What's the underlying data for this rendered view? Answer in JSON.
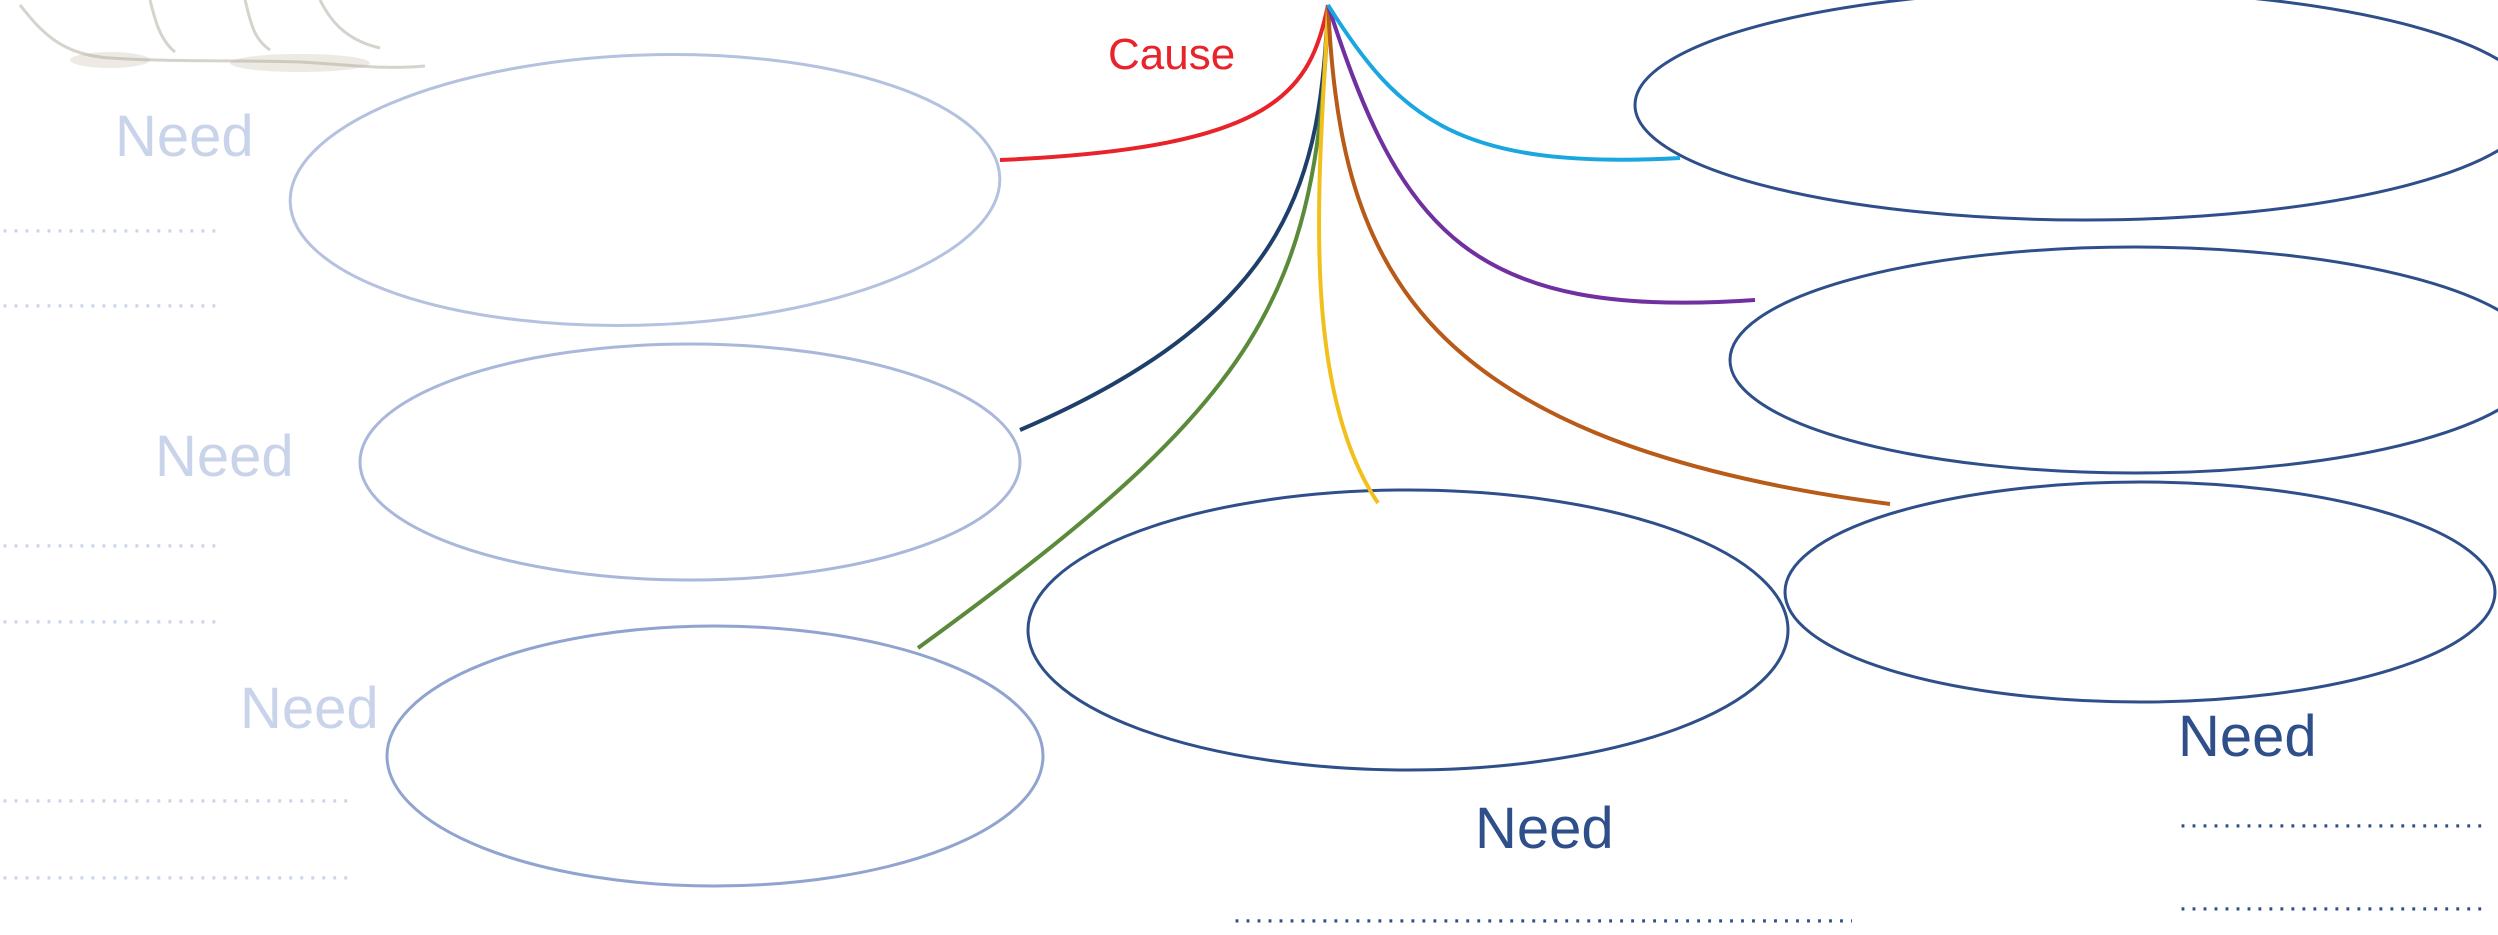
{
  "cause_label": "Cause",
  "need_labels": [
    "Need",
    "Need",
    "Need",
    "Need",
    "Need"
  ],
  "dotted_lines": [
    "····················",
    "····················",
    "····················",
    "····················",
    "································",
    "································",
    "················································································",
    "···································",
    "···································"
  ],
  "colors": {
    "cause_text": "#e8232a",
    "ellipse_stroke": "#2f4f8a",
    "faded_text": "#c9d3ea",
    "connectors": [
      "#e8232a",
      "#1f3f6b",
      "#5a8a3a",
      "#f2c01d",
      "#b85a18",
      "#7030a0",
      "#1aa7e0"
    ]
  }
}
